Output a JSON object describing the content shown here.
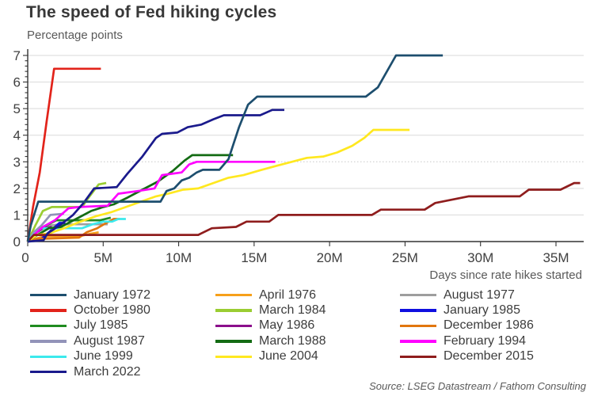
{
  "title": "The speed of Fed hiking cycles",
  "subtitle": "Percentage points",
  "source": "Source: LSEG Datastream / Fathom Consulting",
  "x_axis": {
    "label": "Days since rate hikes started",
    "tick_labels": [
      "0",
      "5M",
      "10M",
      "15M",
      "20M",
      "25M",
      "30M",
      "35M"
    ],
    "tick_values": [
      0,
      5,
      10,
      15,
      20,
      25,
      30,
      35
    ],
    "min": 0,
    "max": 36.8
  },
  "y_axis": {
    "tick_labels": [
      "0",
      "1",
      "2",
      "3",
      "4",
      "5",
      "6",
      "7"
    ],
    "tick_values": [
      0,
      1,
      2,
      3,
      4,
      5,
      6,
      7
    ],
    "min": 0,
    "max": 7,
    "minor_tick_step": 0.2,
    "dotted_gridline_at": 3
  },
  "legend": {
    "columns": [
      [
        "January 1972",
        "October 1980",
        "July 1985",
        "August 1987",
        "June 1999",
        "March 2022"
      ],
      [
        "April 1976",
        "March 1984",
        "May 1986",
        "March 1988",
        "June 2004"
      ],
      [
        "August 1977",
        "January 1985",
        "December 1986",
        "February 1994",
        "December 2015"
      ]
    ]
  },
  "chart_data": {
    "type": "line",
    "title": "The speed of Fed hiking cycles",
    "xlabel": "Days since rate hikes started",
    "ylabel": "Percentage points",
    "xlim": [
      0,
      36.8
    ],
    "ylim": [
      0,
      7
    ],
    "grid": "horizontal",
    "legend_position": "bottom",
    "series": [
      {
        "name": "October 1980",
        "color": "#e2231a",
        "points": [
          [
            0,
            0
          ],
          [
            0.35,
            1.3
          ],
          [
            0.8,
            2.6
          ],
          [
            1.25,
            4.5
          ],
          [
            1.75,
            6.5
          ],
          [
            4.85,
            6.5
          ]
        ]
      },
      {
        "name": "April 1976",
        "color": "#f6a01a",
        "points": [
          [
            0,
            0
          ],
          [
            0.5,
            0.1
          ],
          [
            1.1,
            0.2
          ],
          [
            3.6,
            0.22
          ],
          [
            4.2,
            0.3
          ],
          [
            4.7,
            0.35
          ]
        ]
      },
      {
        "name": "August 1977",
        "color": "#9e9e9e",
        "points": [
          [
            0,
            0
          ],
          [
            0.6,
            0.35
          ],
          [
            1.4,
            0.6
          ],
          [
            2.2,
            0.65
          ],
          [
            5.3,
            0.65
          ]
        ]
      },
      {
        "name": "July 1985",
        "color": "#208b20",
        "points": [
          [
            0,
            0
          ],
          [
            0.6,
            0.35
          ],
          [
            1.2,
            0.6
          ],
          [
            1.9,
            0.8
          ],
          [
            4.8,
            0.8
          ],
          [
            5.5,
            0.9
          ]
        ]
      },
      {
        "name": "March 1984",
        "color": "#9acd32",
        "points": [
          [
            0,
            0
          ],
          [
            0.5,
            0.6
          ],
          [
            1.0,
            1.15
          ],
          [
            1.6,
            1.3
          ],
          [
            3.6,
            1.3
          ],
          [
            4.1,
            1.7
          ],
          [
            4.7,
            2.15
          ],
          [
            5.2,
            2.2
          ]
        ]
      },
      {
        "name": "January 1985",
        "color": "#0f0fe0",
        "points": [
          [
            0,
            0
          ],
          [
            0.9,
            0.1
          ],
          [
            1.5,
            0.4
          ],
          [
            2.1,
            0.7
          ],
          [
            2.5,
            0.7
          ]
        ]
      },
      {
        "name": "August 1987",
        "color": "#9293b9",
        "points": [
          [
            0,
            0
          ],
          [
            0.4,
            0.35
          ],
          [
            0.9,
            0.6
          ],
          [
            1.5,
            1.0
          ],
          [
            2.4,
            1.05
          ]
        ]
      },
      {
        "name": "May 1986",
        "color": "#8b0f8b",
        "points": [
          [
            0,
            0
          ],
          [
            0.5,
            0.3
          ],
          [
            1.0,
            0.5
          ],
          [
            1.6,
            0.55
          ]
        ]
      },
      {
        "name": "December 1986",
        "color": "#e1760e",
        "points": [
          [
            0,
            0
          ],
          [
            0.6,
            0.1
          ],
          [
            3.4,
            0.15
          ],
          [
            3.9,
            0.35
          ],
          [
            4.6,
            0.5
          ],
          [
            5.2,
            0.7
          ],
          [
            5.7,
            0.85
          ],
          [
            6.1,
            0.85
          ]
        ]
      },
      {
        "name": "June 1999",
        "color": "#3ce9ec",
        "points": [
          [
            0,
            0
          ],
          [
            0.35,
            0.25
          ],
          [
            0.9,
            0.5
          ],
          [
            3.6,
            0.5
          ],
          [
            4.3,
            0.65
          ],
          [
            5.0,
            0.75
          ],
          [
            5.6,
            0.75
          ],
          [
            6.0,
            0.85
          ],
          [
            6.5,
            0.85
          ]
        ]
      },
      {
        "name": "March 1988",
        "color": "#136b13",
        "points": [
          [
            0,
            0
          ],
          [
            0.5,
            0.2
          ],
          [
            1.4,
            0.5
          ],
          [
            2.2,
            0.55
          ],
          [
            3.2,
            0.85
          ],
          [
            4.2,
            1.15
          ],
          [
            5.0,
            1.3
          ],
          [
            5.7,
            1.4
          ],
          [
            6.6,
            1.65
          ],
          [
            7.6,
            1.95
          ],
          [
            8.6,
            2.25
          ],
          [
            9.6,
            2.65
          ],
          [
            10.4,
            3.05
          ],
          [
            10.9,
            3.25
          ],
          [
            13.6,
            3.25
          ]
        ]
      },
      {
        "name": "February 1994",
        "color": "#ff00ff",
        "points": [
          [
            0,
            0
          ],
          [
            0.4,
            0.25
          ],
          [
            1.0,
            0.55
          ],
          [
            1.8,
            0.8
          ],
          [
            2.7,
            1.25
          ],
          [
            3.4,
            1.3
          ],
          [
            5.3,
            1.35
          ],
          [
            6.0,
            1.8
          ],
          [
            7.3,
            1.9
          ],
          [
            8.4,
            2.0
          ],
          [
            8.9,
            2.5
          ],
          [
            10.2,
            2.6
          ],
          [
            10.7,
            2.9
          ],
          [
            11.2,
            3.0
          ],
          [
            16.4,
            3.0
          ]
        ]
      },
      {
        "name": "June 2004",
        "color": "#ffe81f",
        "points": [
          [
            0,
            0
          ],
          [
            0.6,
            0.25
          ],
          [
            1.4,
            0.3
          ],
          [
            2.4,
            0.5
          ],
          [
            3.5,
            0.75
          ],
          [
            4.5,
            0.95
          ],
          [
            5.5,
            1.1
          ],
          [
            6.5,
            1.3
          ],
          [
            7.5,
            1.5
          ],
          [
            8.5,
            1.7
          ],
          [
            9.3,
            1.8
          ],
          [
            10.3,
            1.95
          ],
          [
            11.3,
            2.0
          ],
          [
            12.3,
            2.2
          ],
          [
            13.3,
            2.4
          ],
          [
            14.3,
            2.5
          ],
          [
            15.5,
            2.7
          ],
          [
            16.5,
            2.85
          ],
          [
            17.5,
            3.0
          ],
          [
            18.5,
            3.15
          ],
          [
            19.6,
            3.2
          ],
          [
            20.5,
            3.35
          ],
          [
            21.5,
            3.6
          ],
          [
            22.3,
            3.9
          ],
          [
            22.9,
            4.2
          ],
          [
            25.3,
            4.2
          ]
        ]
      },
      {
        "name": "December 2015",
        "color": "#8f1d1d",
        "points": [
          [
            0,
            0
          ],
          [
            0.4,
            0.25
          ],
          [
            11.3,
            0.25
          ],
          [
            12.2,
            0.5
          ],
          [
            13.8,
            0.55
          ],
          [
            14.5,
            0.75
          ],
          [
            16.0,
            0.75
          ],
          [
            16.6,
            1.0
          ],
          [
            22.8,
            1.0
          ],
          [
            23.4,
            1.2
          ],
          [
            26.3,
            1.2
          ],
          [
            27.0,
            1.45
          ],
          [
            29.2,
            1.7
          ],
          [
            32.6,
            1.7
          ],
          [
            33.2,
            1.95
          ],
          [
            35.3,
            1.95
          ],
          [
            36.2,
            2.2
          ],
          [
            36.6,
            2.2
          ]
        ]
      },
      {
        "name": "March 2022",
        "color": "#1a1a8c",
        "points": [
          [
            0,
            0
          ],
          [
            1.05,
            0.05
          ],
          [
            1.3,
            0.3
          ],
          [
            2.1,
            0.6
          ],
          [
            3.0,
            1.0
          ],
          [
            3.7,
            1.45
          ],
          [
            4.4,
            2.0
          ],
          [
            5.9,
            2.05
          ],
          [
            6.6,
            2.55
          ],
          [
            7.6,
            3.2
          ],
          [
            8.5,
            3.9
          ],
          [
            8.9,
            4.05
          ],
          [
            9.9,
            4.1
          ],
          [
            10.6,
            4.3
          ],
          [
            11.5,
            4.4
          ],
          [
            12.3,
            4.6
          ],
          [
            13.0,
            4.75
          ],
          [
            15.4,
            4.75
          ],
          [
            16.2,
            4.95
          ],
          [
            17.0,
            4.95
          ]
        ]
      },
      {
        "name": "January 1972",
        "color": "#1d4e6e",
        "points": [
          [
            0,
            0
          ],
          [
            0.2,
            0.6
          ],
          [
            0.7,
            1.5
          ],
          [
            8.8,
            1.5
          ],
          [
            9.2,
            1.9
          ],
          [
            9.7,
            2.0
          ],
          [
            10.2,
            2.3
          ],
          [
            10.7,
            2.4
          ],
          [
            11.2,
            2.6
          ],
          [
            11.6,
            2.7
          ],
          [
            12.7,
            2.7
          ],
          [
            13.3,
            3.1
          ],
          [
            14.0,
            4.3
          ],
          [
            14.6,
            5.15
          ],
          [
            15.2,
            5.45
          ],
          [
            22.4,
            5.45
          ],
          [
            23.2,
            5.8
          ],
          [
            24.4,
            7.0
          ],
          [
            27.5,
            7.0
          ]
        ]
      }
    ]
  }
}
